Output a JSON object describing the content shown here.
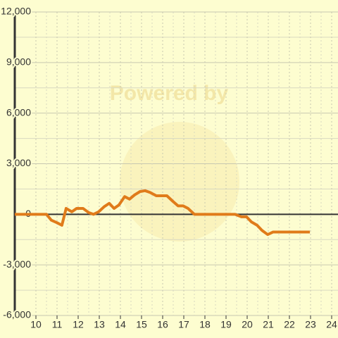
{
  "chart_data": {
    "type": "line",
    "watermark": "Powered by",
    "x": [
      9.0,
      10.5,
      10.73,
      11.0,
      11.23,
      11.43,
      11.7,
      11.93,
      12.23,
      12.5,
      12.73,
      12.97,
      13.23,
      13.47,
      13.7,
      13.93,
      14.2,
      14.43,
      14.67,
      14.93,
      15.17,
      15.4,
      15.7,
      16.2,
      16.5,
      16.73,
      16.97,
      17.2,
      17.5,
      19.43,
      19.73,
      19.97,
      20.2,
      20.47,
      20.7,
      20.97,
      21.23,
      22.97
    ],
    "series": [
      {
        "color": "#e07b1a",
        "values": [
          0,
          0,
          -350,
          -500,
          -650,
          350,
          150,
          350,
          350,
          100,
          0,
          150,
          450,
          650,
          350,
          550,
          1050,
          900,
          1150,
          1350,
          1400,
          1300,
          1100,
          1100,
          750,
          500,
          500,
          350,
          0,
          0,
          -150,
          -150,
          -450,
          -650,
          -950,
          -1200,
          -1050,
          -1050
        ]
      }
    ],
    "xlim": [
      9,
      24.3
    ],
    "xticks": [
      10,
      11,
      12,
      13,
      14,
      15,
      16,
      17,
      18,
      19,
      20,
      21,
      22,
      23,
      24
    ],
    "ylim": [
      -6000,
      12000
    ],
    "yticks": [
      {
        "value": -6000,
        "label": "-6,000"
      },
      {
        "value": -3000,
        "label": "-3,000"
      },
      0,
      {
        "value": 3000,
        "label": "3,000"
      },
      {
        "value": 6000,
        "label": "6,000"
      },
      {
        "value": 9000,
        "label": "9,000"
      },
      {
        "value": 12000,
        "label": "12,000"
      }
    ],
    "grid": true
  }
}
